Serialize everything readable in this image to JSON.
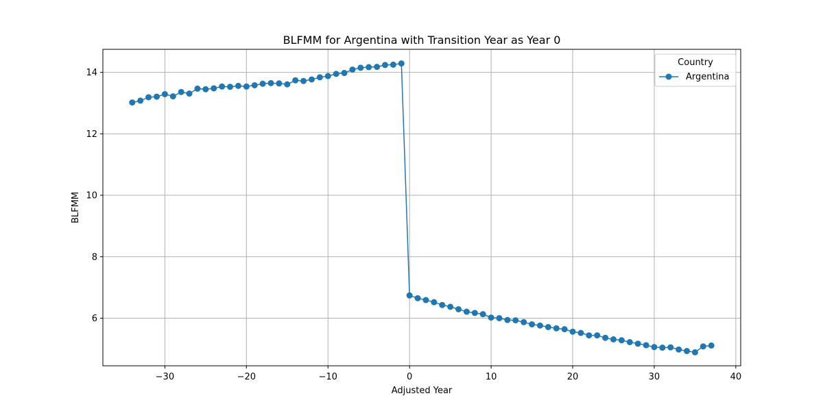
{
  "chart_data": {
    "type": "line",
    "title": "BLFMM for Argentina with Transition Year as Year 0",
    "xlabel": "Adjusted Year",
    "ylabel": "BLFMM",
    "xlim": [
      -37.6,
      40.6
    ],
    "ylim": [
      4.45,
      14.75
    ],
    "xticks": [
      -30,
      -20,
      -10,
      0,
      10,
      20,
      30,
      40
    ],
    "yticks": [
      6,
      8,
      10,
      12,
      14
    ],
    "grid": true,
    "legend": {
      "title": "Country",
      "position": "top-right"
    },
    "colors": {
      "series": "#1f77b4",
      "grid": "#b0b0b0"
    },
    "series": [
      {
        "name": "Argentina",
        "marker": "circle",
        "x": [
          -34,
          -33,
          -32,
          -31,
          -30,
          -29,
          -28,
          -27,
          -26,
          -25,
          -24,
          -23,
          -22,
          -21,
          -20,
          -19,
          -18,
          -17,
          -16,
          -15,
          -14,
          -13,
          -12,
          -11,
          -10,
          -9,
          -8,
          -7,
          -6,
          -5,
          -4,
          -3,
          -2,
          -1,
          0,
          1,
          2,
          3,
          4,
          5,
          6,
          7,
          8,
          9,
          10,
          11,
          12,
          13,
          14,
          15,
          16,
          17,
          18,
          19,
          20,
          21,
          22,
          23,
          24,
          25,
          26,
          27,
          28,
          29,
          30,
          31,
          32,
          33,
          34,
          35,
          36,
          37
        ],
        "y": [
          13.02,
          13.08,
          13.19,
          13.21,
          13.29,
          13.22,
          13.36,
          13.31,
          13.47,
          13.45,
          13.48,
          13.54,
          13.53,
          13.56,
          13.54,
          13.58,
          13.63,
          13.65,
          13.64,
          13.61,
          13.74,
          13.72,
          13.77,
          13.84,
          13.88,
          13.95,
          13.98,
          14.09,
          14.15,
          14.17,
          14.18,
          14.24,
          14.25,
          14.29,
          6.74,
          6.65,
          6.59,
          6.52,
          6.43,
          6.37,
          6.29,
          6.21,
          6.17,
          6.13,
          6.02,
          6.0,
          5.94,
          5.93,
          5.87,
          5.8,
          5.76,
          5.71,
          5.67,
          5.64,
          5.56,
          5.52,
          5.44,
          5.44,
          5.36,
          5.31,
          5.28,
          5.22,
          5.17,
          5.12,
          5.06,
          5.04,
          5.05,
          4.98,
          4.93,
          4.89,
          5.08,
          5.11
        ]
      }
    ]
  }
}
